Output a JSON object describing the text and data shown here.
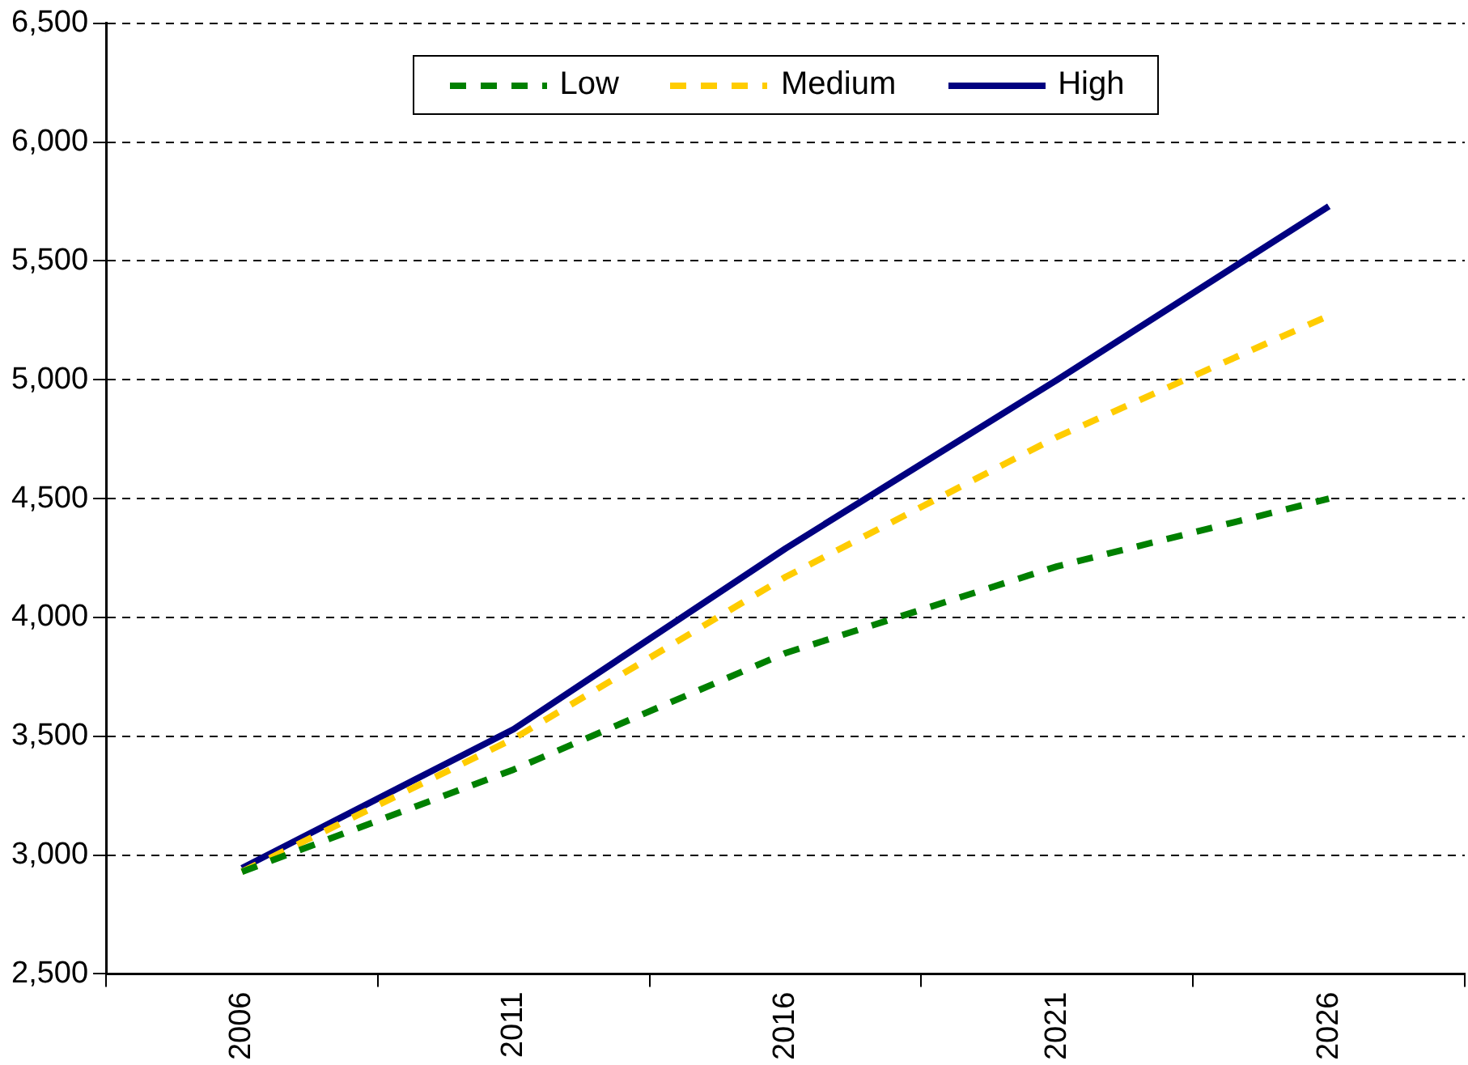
{
  "chart_data": {
    "type": "line",
    "categories": [
      "2006",
      "2011",
      "2016",
      "2021",
      "2026"
    ],
    "series": [
      {
        "name": "Low",
        "color": "#008000",
        "line_style": "dashed",
        "values": [
          2930,
          3360,
          3850,
          4215,
          4500
        ]
      },
      {
        "name": "Medium",
        "color": "#ffcc00",
        "line_style": "dashed",
        "values": [
          2930,
          3490,
          4170,
          4760,
          5270
        ]
      },
      {
        "name": "High",
        "color": "#000080",
        "line_style": "solid",
        "values": [
          2945,
          3530,
          4290,
          5000,
          5730
        ]
      }
    ],
    "ylim": [
      2500,
      6500
    ],
    "yticks": [
      {
        "value": 2500,
        "label": "2,500"
      },
      {
        "value": 3000,
        "label": "3,000"
      },
      {
        "value": 3500,
        "label": "3,500"
      },
      {
        "value": 4000,
        "label": "4,000"
      },
      {
        "value": 4500,
        "label": "4,500"
      },
      {
        "value": 5000,
        "label": "5,000"
      },
      {
        "value": 5500,
        "label": "5,500"
      },
      {
        "value": 6000,
        "label": "6,000"
      },
      {
        "value": 6500,
        "label": "6,500"
      }
    ],
    "grid": "y",
    "legend": "top",
    "marker": "none"
  }
}
